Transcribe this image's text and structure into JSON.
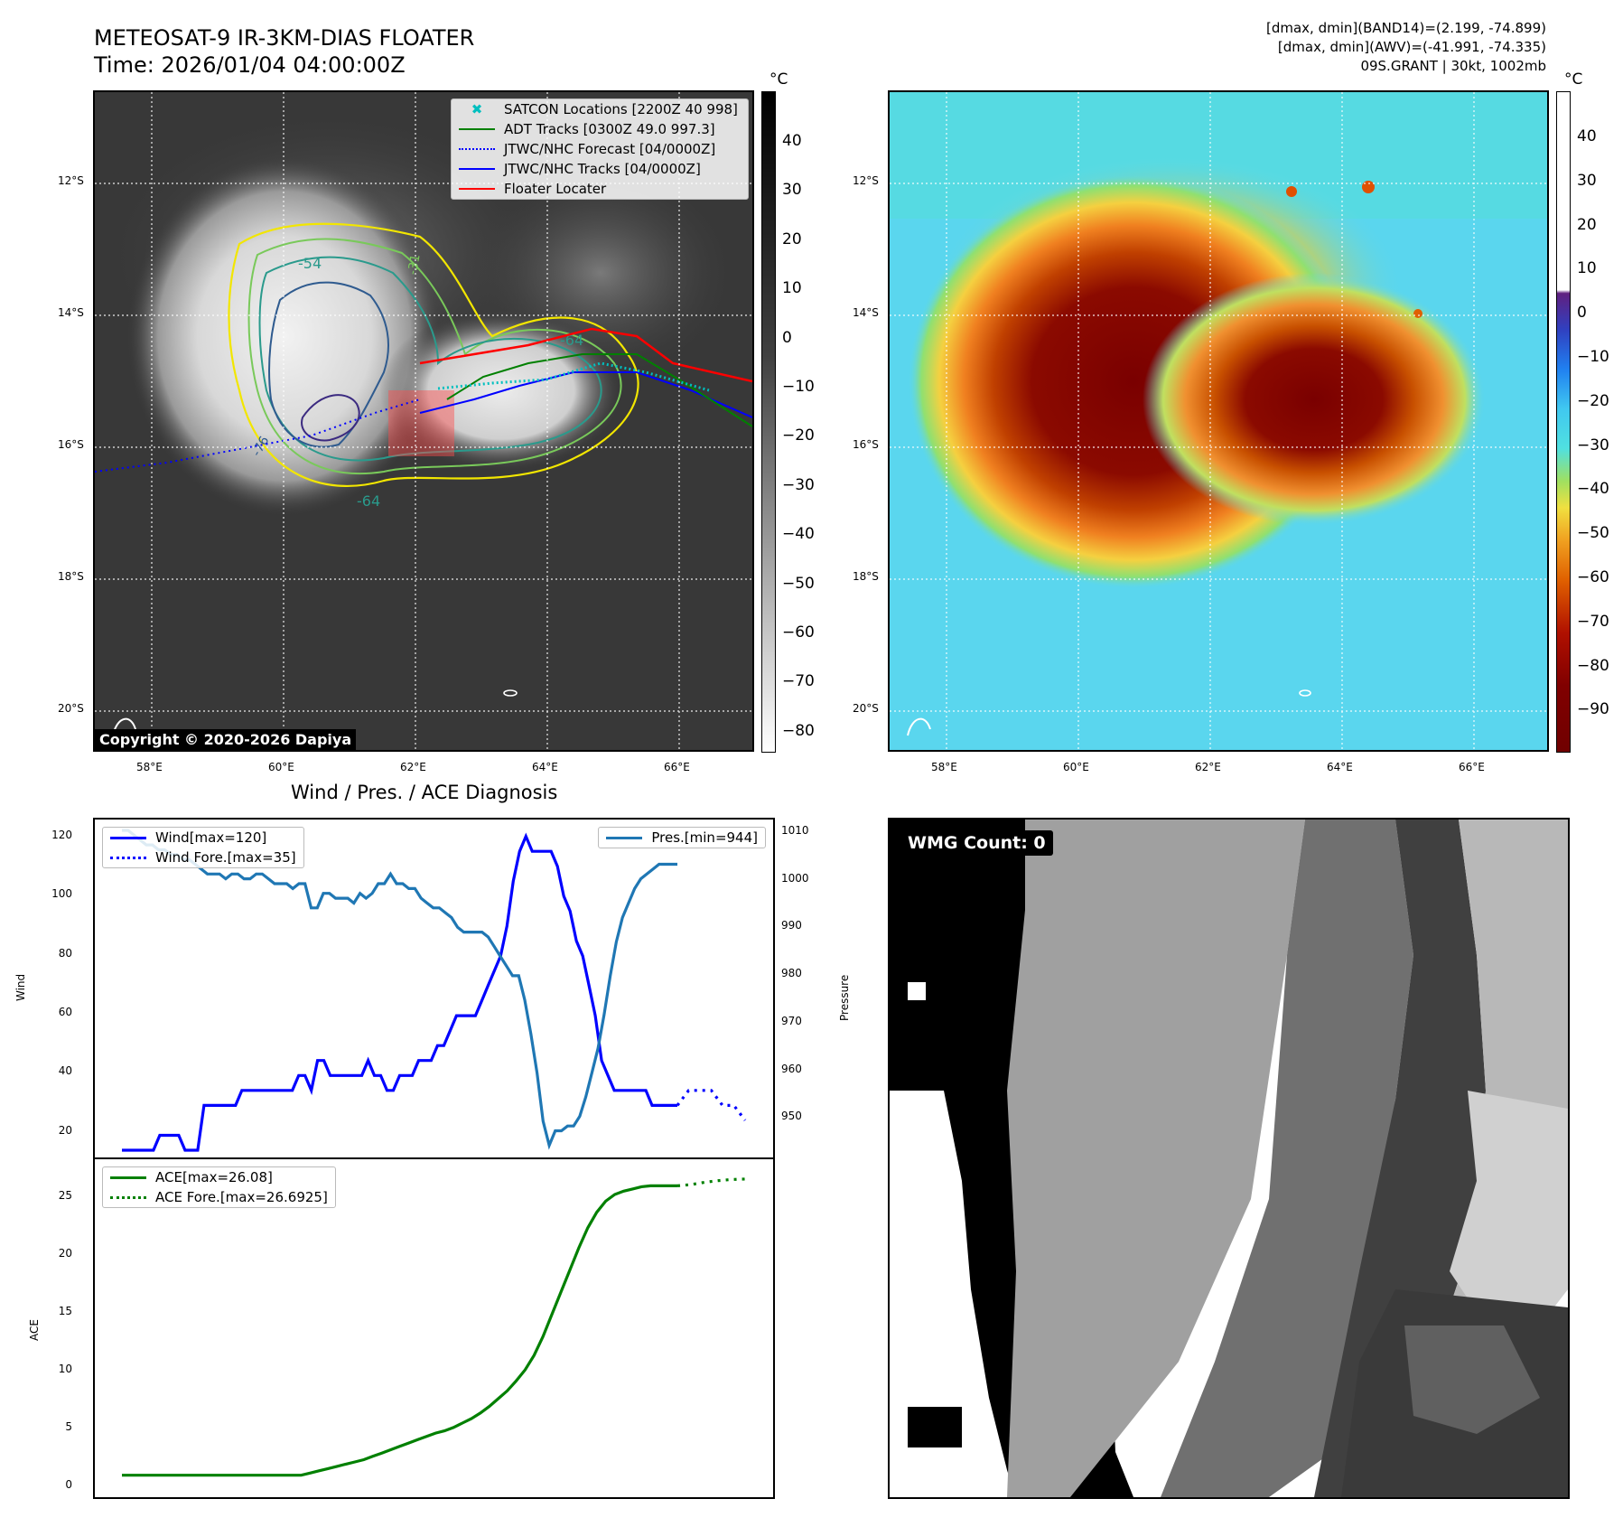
{
  "header": {
    "title_line1": "METEOSAT-9 IR-3KM-DIAS FLOATER",
    "title_line2": "Time: 2026/01/04 04:00:00Z",
    "stats_line1": "[dmax, dmin](BAND14)=(2.199, -74.899)",
    "stats_line2": "[dmax, dmin](AWV)=(-41.991, -74.335)",
    "stats_line3": "09S.GRANT | 30kt, 1002mb"
  },
  "map": {
    "lat_labels": [
      "12°S",
      "14°S",
      "16°S",
      "18°S",
      "20°S"
    ],
    "lon_labels": [
      "58°E",
      "60°E",
      "62°E",
      "64°E",
      "66°E"
    ],
    "copyright": "Copyright © 2020-2026 Dapiya",
    "contour_labels": [
      "-54",
      "-31",
      "-64",
      "-64",
      "-76"
    ],
    "legend": [
      {
        "label": "SATCON Locations [2200Z 40 998]",
        "color": "#00bfbf",
        "style": "x"
      },
      {
        "label": "ADT Tracks [0300Z 49.0 997.3]",
        "color": "#008000",
        "style": "line"
      },
      {
        "label": "JTWC/NHC Forecast [04/0000Z]",
        "color": "#0000ff",
        "style": "dotted"
      },
      {
        "label": "JTWC/NHC Tracks [04/0000Z]",
        "color": "#0000ff",
        "style": "line-dot"
      },
      {
        "label": "Floater Locater",
        "color": "#ff0000",
        "style": "line"
      }
    ]
  },
  "colorbar_ir": {
    "unit": "°C",
    "ticks": [
      "40",
      "30",
      "20",
      "10",
      "0",
      "−10",
      "−20",
      "−30",
      "−40",
      "−50",
      "−60",
      "−70",
      "−80"
    ]
  },
  "colorbar_wv": {
    "unit": "°C",
    "ticks": [
      "40",
      "30",
      "20",
      "10",
      "0",
      "−10",
      "−20",
      "−30",
      "−40",
      "−50",
      "−60",
      "−70",
      "−80",
      "−90"
    ]
  },
  "diag": {
    "title": "Wind / Pres. / ACE Diagnosis",
    "wind_ylabel": "Wind",
    "pres_ylabel": "Pressure",
    "ace_ylabel": "ACE",
    "wind_ticks": [
      "120",
      "100",
      "80",
      "60",
      "40",
      "20"
    ],
    "pres_ticks": [
      "1010",
      "1000",
      "990",
      "980",
      "970",
      "960",
      "950"
    ],
    "ace_ticks": [
      "25",
      "20",
      "15",
      "10",
      "5",
      "0"
    ],
    "legend_wind": "Wind[max=120]",
    "legend_wind_fore": "Wind Fore.[max=35]",
    "legend_pres": "Pres.[min=944]",
    "legend_ace": "ACE[max=26.08]",
    "legend_ace_fore": "ACE Fore.[max=26.6925]"
  },
  "wmg": {
    "label": "WMG Count: 0"
  },
  "chart_data": [
    {
      "type": "line",
      "title": "Wind / Pres. / ACE Diagnosis",
      "ylabel": "Wind",
      "ylim": [
        15,
        122
      ],
      "series": [
        {
          "name": "Wind[max=120]",
          "color": "#0000ff",
          "values": [
            15,
            15,
            15,
            15,
            15,
            15,
            20,
            20,
            20,
            20,
            15,
            15,
            15,
            30,
            30,
            30,
            30,
            30,
            30,
            35,
            35,
            35,
            35,
            35,
            35,
            35,
            35,
            35,
            40,
            40,
            35,
            45,
            45,
            40,
            40,
            40,
            40,
            40,
            40,
            45,
            40,
            40,
            35,
            35,
            40,
            40,
            40,
            45,
            45,
            45,
            50,
            50,
            55,
            60,
            60,
            60,
            60,
            65,
            70,
            75,
            80,
            90,
            105,
            115,
            120,
            115,
            115,
            115,
            115,
            110,
            100,
            95,
            85,
            80,
            70,
            60,
            45,
            40,
            35,
            35,
            35,
            35,
            35,
            35,
            30,
            30,
            30,
            30,
            30
          ]
        },
        {
          "name": "Wind Fore.[max=35]",
          "color": "#0000ff",
          "dashed": true,
          "values": [
            30,
            35,
            35,
            35,
            30,
            30,
            25
          ]
        }
      ]
    },
    {
      "type": "line",
      "ylabel": "Pressure",
      "ylim": [
        944,
        1010
      ],
      "series": [
        {
          "name": "Pres.[min=944]",
          "color": "#1f77b4",
          "values": [
            1010,
            1010,
            1009,
            1008,
            1007,
            1007,
            1006,
            1006,
            1005,
            1005,
            1004,
            1004,
            1003,
            1002,
            1001,
            1001,
            1001,
            1000,
            1001,
            1001,
            1000,
            1000,
            1001,
            1001,
            1000,
            999,
            999,
            999,
            998,
            999,
            999,
            994,
            994,
            997,
            997,
            996,
            996,
            996,
            995,
            997,
            996,
            997,
            999,
            999,
            1001,
            999,
            999,
            998,
            998,
            996,
            995,
            994,
            994,
            993,
            992,
            990,
            989,
            989,
            989,
            989,
            988,
            986,
            984,
            982,
            980,
            980,
            975,
            968,
            960,
            950,
            945,
            948,
            948,
            949,
            949,
            951,
            955,
            960,
            965,
            972,
            980,
            987,
            992,
            995,
            998,
            1000,
            1001,
            1002,
            1003,
            1003,
            1003,
            1003
          ]
        }
      ]
    },
    {
      "type": "line",
      "ylabel": "ACE",
      "ylim": [
        -1,
        27.5
      ],
      "series": [
        {
          "name": "ACE[max=26.08]",
          "color": "#008000",
          "values": [
            0,
            0,
            0,
            0,
            0,
            0,
            0,
            0,
            0,
            0,
            0,
            0,
            0,
            0,
            0,
            0,
            0,
            0,
            0,
            0,
            0,
            0.2,
            0.4,
            0.6,
            0.8,
            1.0,
            1.2,
            1.4,
            1.7,
            2.0,
            2.3,
            2.6,
            2.9,
            3.2,
            3.5,
            3.8,
            4.0,
            4.3,
            4.7,
            5.1,
            5.6,
            6.2,
            6.9,
            7.6,
            8.5,
            9.5,
            10.8,
            12.5,
            14.5,
            16.5,
            18.5,
            20.5,
            22.3,
            23.7,
            24.7,
            25.3,
            25.6,
            25.8,
            26.0,
            26.08,
            26.08,
            26.08,
            26.08
          ]
        },
        {
          "name": "ACE Fore.[max=26.6925]",
          "color": "#008000",
          "dashed": true,
          "values": [
            26.08,
            26.2,
            26.4,
            26.55,
            26.65,
            26.69
          ]
        }
      ]
    }
  ]
}
